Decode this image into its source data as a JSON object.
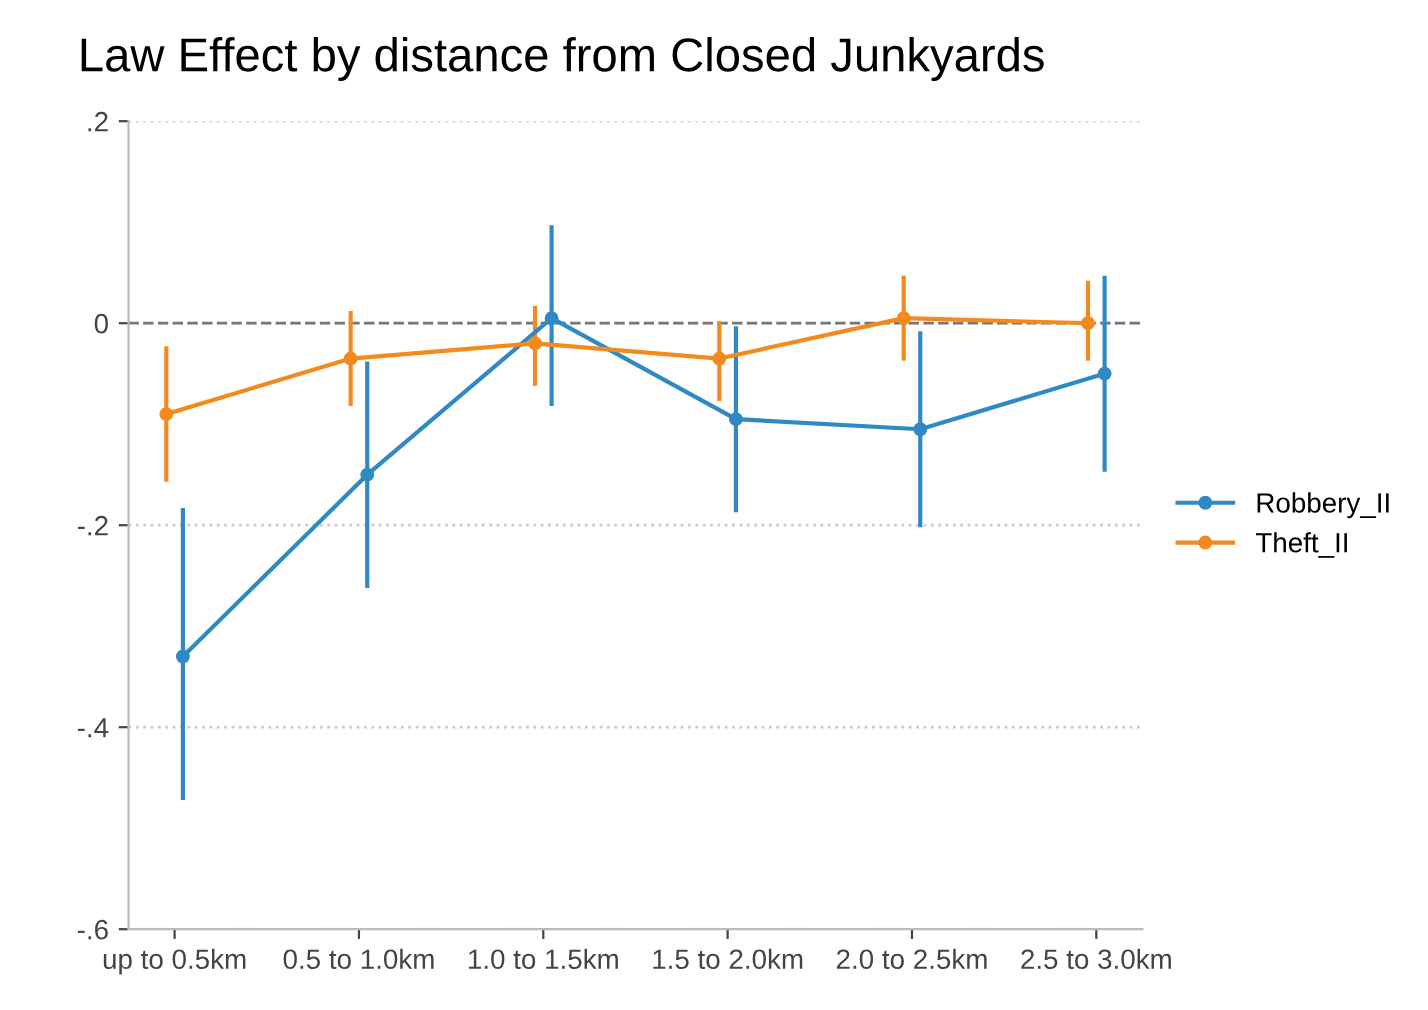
{
  "chart_data": {
    "type": "line",
    "title": "Law Effect by distance from Closed Junkyards",
    "categories": [
      "up to 0.5km",
      "0.5 to 1.0km",
      "1.0 to 1.5km",
      "1.5 to 2.0km",
      "2.0 to 2.5km",
      "2.5 to 3.0km"
    ],
    "series": [
      {
        "name": "Robbery_II",
        "color": "#2f8ac4",
        "values": [
          -0.33,
          -0.15,
          0.005,
          -0.095,
          -0.105,
          -0.05
        ],
        "errors": [
          [
            -0.47,
            -0.185
          ],
          [
            -0.26,
            -0.04
          ],
          [
            -0.08,
            0.095
          ],
          [
            -0.185,
            -0.005
          ],
          [
            -0.2,
            -0.01
          ],
          [
            -0.145,
            0.045
          ]
        ]
      },
      {
        "name": "Theft_II",
        "color": "#f28a1e",
        "values": [
          -0.09,
          -0.035,
          -0.02,
          -0.035,
          0.005,
          0.0
        ],
        "errors": [
          [
            -0.155,
            -0.025
          ],
          [
            -0.08,
            0.01
          ],
          [
            -0.06,
            0.015
          ],
          [
            -0.075,
            0.0
          ],
          [
            -0.035,
            0.045
          ],
          [
            -0.035,
            0.04
          ]
        ]
      }
    ],
    "ylim": [
      -0.6,
      0.2
    ],
    "yticks": [
      {
        "value": -0.6,
        "label": "-.6"
      },
      {
        "value": -0.4,
        "label": "-.4"
      },
      {
        "value": -0.2,
        "label": "-.2"
      },
      {
        "value": 0,
        "label": "0"
      },
      {
        "value": 0.2,
        "label": ".2"
      }
    ],
    "ref_lines": [
      {
        "axis": "y",
        "value": 0,
        "line_style": "dashed",
        "color": "#777777"
      }
    ],
    "grid": "y",
    "legend": "right",
    "marker": "circle",
    "line_style": "solid"
  }
}
